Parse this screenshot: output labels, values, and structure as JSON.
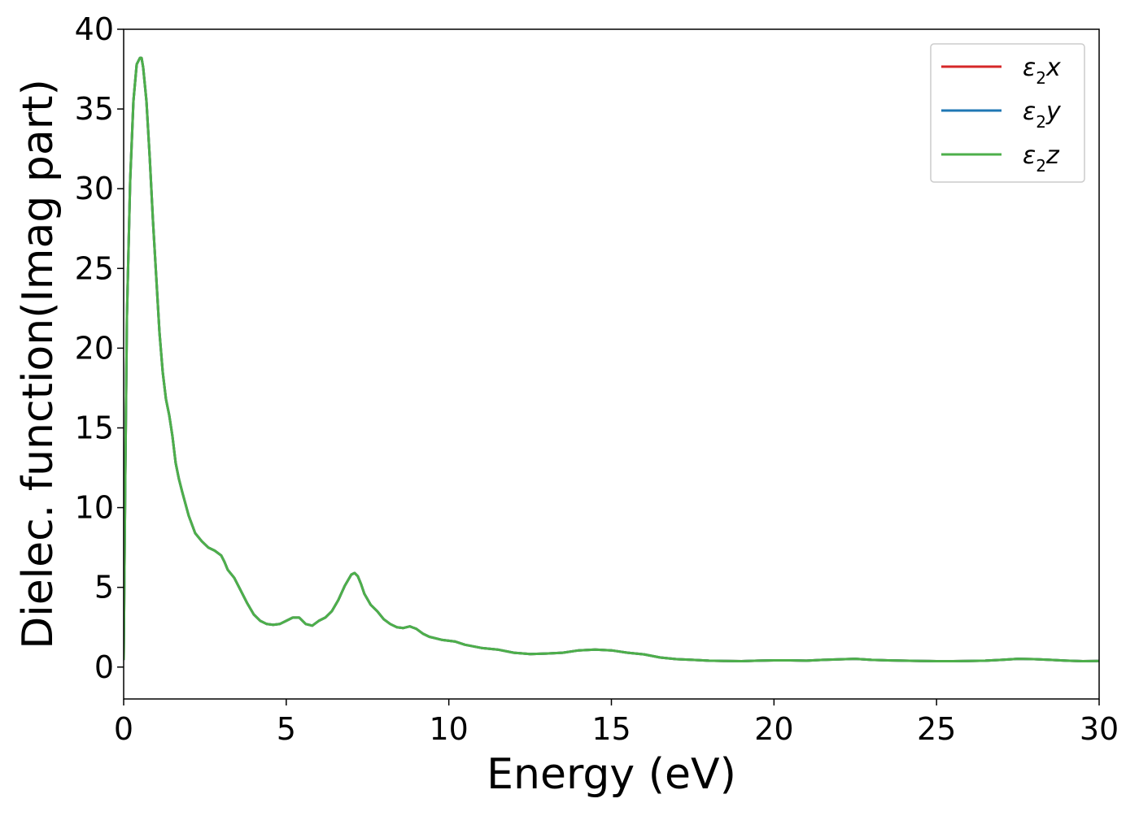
{
  "chart_data": {
    "type": "line",
    "title": "",
    "xlabel": "Energy (eV)",
    "ylabel": "Dielec. function(Imag part)",
    "xlim": [
      0,
      30
    ],
    "ylim": [
      -2,
      40
    ],
    "xticks": [
      0,
      5,
      10,
      15,
      20,
      25,
      30
    ],
    "yticks": [
      0,
      5,
      10,
      15,
      20,
      25,
      30,
      35,
      40
    ],
    "grid": false,
    "legend_position": "top-right",
    "series": [
      {
        "name": "ε₂x",
        "legend": {
          "main": "ε",
          "sub": "2",
          "axis": "x"
        },
        "color": "#d62728",
        "x": [
          0,
          0.05,
          0.1,
          0.2,
          0.3,
          0.4,
          0.5,
          0.55,
          0.6,
          0.7,
          0.8,
          0.9,
          1.0,
          1.1,
          1.2,
          1.3,
          1.4,
          1.5,
          1.6,
          1.7,
          1.8,
          2.0,
          2.2,
          2.4,
          2.6,
          2.8,
          3.0,
          3.1,
          3.2,
          3.4,
          3.6,
          3.8,
          4.0,
          4.2,
          4.4,
          4.6,
          4.8,
          5.0,
          5.2,
          5.4,
          5.6,
          5.8,
          6.0,
          6.2,
          6.4,
          6.6,
          6.8,
          7.0,
          7.1,
          7.2,
          7.3,
          7.4,
          7.6,
          7.8,
          8.0,
          8.2,
          8.4,
          8.6,
          8.8,
          9.0,
          9.2,
          9.4,
          9.6,
          9.8,
          10.0,
          10.2,
          10.5,
          11.0,
          11.5,
          12.0,
          12.5,
          13.0,
          13.5,
          14.0,
          14.5,
          15.0,
          15.5,
          16.0,
          16.5,
          17.0,
          17.5,
          18.0,
          18.5,
          19.0,
          19.5,
          20.0,
          20.5,
          21.0,
          21.5,
          22.0,
          22.5,
          23.0,
          23.5,
          24.0,
          24.5,
          25.0,
          25.5,
          26.0,
          26.5,
          27.0,
          27.5,
          28.0,
          28.5,
          29.0,
          29.5,
          30.0
        ],
        "y": [
          0.5,
          12,
          22,
          30.5,
          35.5,
          37.8,
          38.2,
          38.2,
          37.6,
          35.5,
          32,
          28,
          24.5,
          21,
          18.5,
          16.8,
          15.8,
          14.5,
          12.8,
          11.8,
          11.0,
          9.5,
          8.4,
          7.9,
          7.5,
          7.3,
          7.0,
          6.6,
          6.1,
          5.6,
          4.8,
          4.0,
          3.3,
          2.9,
          2.7,
          2.65,
          2.7,
          2.9,
          3.1,
          3.1,
          2.7,
          2.6,
          2.9,
          3.1,
          3.5,
          4.2,
          5.1,
          5.8,
          5.9,
          5.7,
          5.2,
          4.6,
          3.9,
          3.5,
          3.0,
          2.7,
          2.5,
          2.45,
          2.55,
          2.4,
          2.1,
          1.9,
          1.8,
          1.7,
          1.65,
          1.6,
          1.4,
          1.2,
          1.1,
          0.9,
          0.82,
          0.85,
          0.9,
          1.05,
          1.1,
          1.05,
          0.9,
          0.8,
          0.6,
          0.5,
          0.45,
          0.4,
          0.38,
          0.37,
          0.4,
          0.42,
          0.42,
          0.4,
          0.45,
          0.48,
          0.52,
          0.45,
          0.42,
          0.4,
          0.38,
          0.37,
          0.37,
          0.38,
          0.4,
          0.45,
          0.52,
          0.5,
          0.45,
          0.4,
          0.37,
          0.38
        ]
      },
      {
        "name": "ε₂y",
        "legend": {
          "main": "ε",
          "sub": "2",
          "axis": "y"
        },
        "color": "#1f77b4",
        "x": [
          0,
          0.05,
          0.1,
          0.2,
          0.3,
          0.4,
          0.5,
          0.55,
          0.6,
          0.7,
          0.8,
          0.9,
          1.0,
          1.1,
          1.2,
          1.3,
          1.4,
          1.5,
          1.6,
          1.7,
          1.8,
          2.0,
          2.2,
          2.4,
          2.6,
          2.8,
          3.0,
          3.1,
          3.2,
          3.4,
          3.6,
          3.8,
          4.0,
          4.2,
          4.4,
          4.6,
          4.8,
          5.0,
          5.2,
          5.4,
          5.6,
          5.8,
          6.0,
          6.2,
          6.4,
          6.6,
          6.8,
          7.0,
          7.1,
          7.2,
          7.3,
          7.4,
          7.6,
          7.8,
          8.0,
          8.2,
          8.4,
          8.6,
          8.8,
          9.0,
          9.2,
          9.4,
          9.6,
          9.8,
          10.0,
          10.2,
          10.5,
          11.0,
          11.5,
          12.0,
          12.5,
          13.0,
          13.5,
          14.0,
          14.5,
          15.0,
          15.5,
          16.0,
          16.5,
          17.0,
          17.5,
          18.0,
          18.5,
          19.0,
          19.5,
          20.0,
          20.5,
          21.0,
          21.5,
          22.0,
          22.5,
          23.0,
          23.5,
          24.0,
          24.5,
          25.0,
          25.5,
          26.0,
          26.5,
          27.0,
          27.5,
          28.0,
          28.5,
          29.0,
          29.5,
          30.0
        ],
        "y": [
          0.5,
          12,
          22,
          30.5,
          35.5,
          37.8,
          38.2,
          38.2,
          37.6,
          35.5,
          32,
          28,
          24.5,
          21,
          18.5,
          16.8,
          15.8,
          14.5,
          12.8,
          11.8,
          11.0,
          9.5,
          8.4,
          7.9,
          7.5,
          7.3,
          7.0,
          6.6,
          6.1,
          5.6,
          4.8,
          4.0,
          3.3,
          2.9,
          2.7,
          2.65,
          2.7,
          2.9,
          3.1,
          3.1,
          2.7,
          2.6,
          2.9,
          3.1,
          3.5,
          4.2,
          5.1,
          5.8,
          5.9,
          5.7,
          5.2,
          4.6,
          3.9,
          3.5,
          3.0,
          2.7,
          2.5,
          2.45,
          2.55,
          2.4,
          2.1,
          1.9,
          1.8,
          1.7,
          1.65,
          1.6,
          1.4,
          1.2,
          1.1,
          0.9,
          0.82,
          0.85,
          0.9,
          1.05,
          1.1,
          1.05,
          0.9,
          0.8,
          0.6,
          0.5,
          0.45,
          0.4,
          0.38,
          0.37,
          0.4,
          0.42,
          0.42,
          0.4,
          0.45,
          0.48,
          0.52,
          0.45,
          0.42,
          0.4,
          0.38,
          0.37,
          0.37,
          0.38,
          0.4,
          0.45,
          0.52,
          0.5,
          0.45,
          0.4,
          0.37,
          0.38
        ]
      },
      {
        "name": "ε₂z",
        "legend": {
          "main": "ε",
          "sub": "2",
          "axis": "z"
        },
        "color": "#4daf4a",
        "x": [
          0,
          0.05,
          0.1,
          0.2,
          0.3,
          0.4,
          0.5,
          0.55,
          0.6,
          0.7,
          0.8,
          0.9,
          1.0,
          1.1,
          1.2,
          1.3,
          1.4,
          1.5,
          1.6,
          1.7,
          1.8,
          2.0,
          2.2,
          2.4,
          2.6,
          2.8,
          3.0,
          3.1,
          3.2,
          3.4,
          3.6,
          3.8,
          4.0,
          4.2,
          4.4,
          4.6,
          4.8,
          5.0,
          5.2,
          5.4,
          5.6,
          5.8,
          6.0,
          6.2,
          6.4,
          6.6,
          6.8,
          7.0,
          7.1,
          7.2,
          7.3,
          7.4,
          7.6,
          7.8,
          8.0,
          8.2,
          8.4,
          8.6,
          8.8,
          9.0,
          9.2,
          9.4,
          9.6,
          9.8,
          10.0,
          10.2,
          10.5,
          11.0,
          11.5,
          12.0,
          12.5,
          13.0,
          13.5,
          14.0,
          14.5,
          15.0,
          15.5,
          16.0,
          16.5,
          17.0,
          17.5,
          18.0,
          18.5,
          19.0,
          19.5,
          20.0,
          20.5,
          21.0,
          21.5,
          22.0,
          22.5,
          23.0,
          23.5,
          24.0,
          24.5,
          25.0,
          25.5,
          26.0,
          26.5,
          27.0,
          27.5,
          28.0,
          28.5,
          29.0,
          29.5,
          30.0
        ],
        "y": [
          0.5,
          12,
          22,
          30.5,
          35.5,
          37.8,
          38.2,
          38.2,
          37.6,
          35.5,
          32,
          28,
          24.5,
          21,
          18.5,
          16.8,
          15.8,
          14.5,
          12.8,
          11.8,
          11.0,
          9.5,
          8.4,
          7.9,
          7.5,
          7.3,
          7.0,
          6.6,
          6.1,
          5.6,
          4.8,
          4.0,
          3.3,
          2.9,
          2.7,
          2.65,
          2.7,
          2.9,
          3.1,
          3.1,
          2.7,
          2.6,
          2.9,
          3.1,
          3.5,
          4.2,
          5.1,
          5.8,
          5.9,
          5.7,
          5.2,
          4.6,
          3.9,
          3.5,
          3.0,
          2.7,
          2.5,
          2.45,
          2.55,
          2.4,
          2.1,
          1.9,
          1.8,
          1.7,
          1.65,
          1.6,
          1.4,
          1.2,
          1.1,
          0.9,
          0.82,
          0.85,
          0.9,
          1.05,
          1.1,
          1.05,
          0.9,
          0.8,
          0.6,
          0.5,
          0.45,
          0.4,
          0.38,
          0.37,
          0.4,
          0.42,
          0.42,
          0.4,
          0.45,
          0.48,
          0.52,
          0.45,
          0.42,
          0.4,
          0.38,
          0.37,
          0.37,
          0.38,
          0.4,
          0.45,
          0.52,
          0.5,
          0.45,
          0.4,
          0.37,
          0.38
        ]
      }
    ]
  }
}
